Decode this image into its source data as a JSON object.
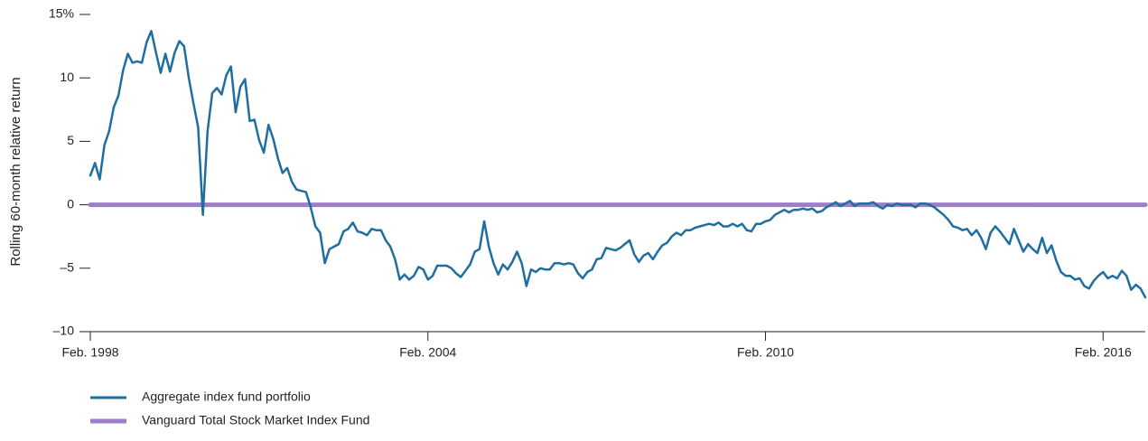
{
  "chart_data": {
    "type": "line",
    "ylabel": "Rolling 60-month relative return",
    "ylim": [
      -10,
      15
    ],
    "yticks": [
      {
        "value": -10,
        "label": "–10"
      },
      {
        "value": -5,
        "label": "–5"
      },
      0,
      5,
      10,
      {
        "value": 15,
        "label": "15%"
      }
    ],
    "xlim": [
      "1998-02",
      "2016-11"
    ],
    "xticks": [
      {
        "value": "1998-02",
        "label": "Feb. 1998"
      },
      {
        "value": "2004-02",
        "label": "Feb. 2004"
      },
      {
        "value": "2010-02",
        "label": "Feb. 2010"
      },
      {
        "value": "2016-02",
        "label": "Feb. 2016"
      }
    ],
    "x": [
      "1998-02",
      "1998-03",
      "1998-04",
      "1998-05",
      "1998-06",
      "1998-07",
      "1998-08",
      "1998-09",
      "1998-10",
      "1998-11",
      "1998-12",
      "1999-01",
      "1999-02",
      "1999-03",
      "1999-04",
      "1999-05",
      "1999-06",
      "1999-07",
      "1999-08",
      "1999-09",
      "1999-10",
      "1999-11",
      "1999-12",
      "2000-01",
      "2000-02",
      "2000-03",
      "2000-04",
      "2000-05",
      "2000-06",
      "2000-07",
      "2000-08",
      "2000-09",
      "2000-10",
      "2000-11",
      "2000-12",
      "2001-01",
      "2001-02",
      "2001-03",
      "2001-04",
      "2001-05",
      "2001-06",
      "2001-07",
      "2001-08",
      "2001-09",
      "2001-10",
      "2001-11",
      "2001-12",
      "2002-01",
      "2002-02",
      "2002-03",
      "2002-04",
      "2002-05",
      "2002-06",
      "2002-07",
      "2002-08",
      "2002-09",
      "2002-10",
      "2002-11",
      "2002-12",
      "2003-01",
      "2003-02",
      "2003-03",
      "2003-04",
      "2003-05",
      "2003-06",
      "2003-07",
      "2003-08",
      "2003-09",
      "2003-10",
      "2003-11",
      "2003-12",
      "2004-01",
      "2004-02",
      "2004-03",
      "2004-04",
      "2004-05",
      "2004-06",
      "2004-07",
      "2004-08",
      "2004-09",
      "2004-10",
      "2004-11",
      "2004-12",
      "2005-01",
      "2005-02",
      "2005-03",
      "2005-04",
      "2005-05",
      "2005-06",
      "2005-07",
      "2005-08",
      "2005-09",
      "2005-10",
      "2005-11",
      "2005-12",
      "2006-01",
      "2006-02",
      "2006-03",
      "2006-04",
      "2006-05",
      "2006-06",
      "2006-07",
      "2006-08",
      "2006-09",
      "2006-10",
      "2006-11",
      "2006-12",
      "2007-01",
      "2007-02",
      "2007-03",
      "2007-04",
      "2007-05",
      "2007-06",
      "2007-07",
      "2007-08",
      "2007-09",
      "2007-10",
      "2007-11",
      "2007-12",
      "2008-01",
      "2008-02",
      "2008-03",
      "2008-04",
      "2008-05",
      "2008-06",
      "2008-07",
      "2008-08",
      "2008-09",
      "2008-10",
      "2008-11",
      "2008-12",
      "2009-01",
      "2009-02",
      "2009-03",
      "2009-04",
      "2009-05",
      "2009-06",
      "2009-07",
      "2009-08",
      "2009-09",
      "2009-10",
      "2009-11",
      "2009-12",
      "2010-01",
      "2010-02",
      "2010-03",
      "2010-04",
      "2010-05",
      "2010-06",
      "2010-07",
      "2010-08",
      "2010-09",
      "2010-10",
      "2010-11",
      "2010-12",
      "2011-01",
      "2011-02",
      "2011-03",
      "2011-04",
      "2011-05",
      "2011-06",
      "2011-07",
      "2011-08",
      "2011-09",
      "2011-10",
      "2011-11",
      "2011-12",
      "2012-01",
      "2012-02",
      "2012-03",
      "2012-04",
      "2012-05",
      "2012-06",
      "2012-07",
      "2012-08",
      "2012-09",
      "2012-10",
      "2012-11",
      "2012-12",
      "2013-01",
      "2013-02",
      "2013-03",
      "2013-04",
      "2013-05",
      "2013-06",
      "2013-07",
      "2013-08",
      "2013-09",
      "2013-10",
      "2013-11",
      "2013-12",
      "2014-01",
      "2014-02",
      "2014-03",
      "2014-04",
      "2014-05",
      "2014-06",
      "2014-07",
      "2014-08",
      "2014-09",
      "2014-10",
      "2014-11",
      "2014-12",
      "2015-01",
      "2015-02",
      "2015-03",
      "2015-04",
      "2015-05",
      "2015-06",
      "2015-07",
      "2015-08",
      "2015-09",
      "2015-10",
      "2015-11",
      "2015-12",
      "2016-01",
      "2016-02",
      "2016-03",
      "2016-04",
      "2016-05",
      "2016-06",
      "2016-07",
      "2016-08",
      "2016-09",
      "2016-10",
      "2016-11"
    ],
    "series": [
      {
        "name": "Aggregate index fund portfolio",
        "color": "#1f6ea0",
        "values": [
          2.3,
          3.3,
          2.0,
          4.7,
          5.8,
          7.7,
          8.6,
          10.6,
          11.9,
          11.2,
          11.3,
          11.2,
          12.8,
          13.7,
          12.0,
          10.4,
          11.9,
          10.5,
          12.0,
          12.9,
          12.5,
          10.0,
          8.0,
          6.1,
          -0.8,
          5.8,
          8.8,
          9.2,
          8.7,
          10.2,
          10.9,
          7.3,
          9.3,
          9.9,
          6.6,
          6.7,
          5.1,
          4.1,
          6.3,
          5.2,
          3.7,
          2.5,
          2.9,
          1.8,
          1.2,
          1.1,
          1.0,
          -0.2,
          -1.7,
          -2.2,
          -4.6,
          -3.5,
          -3.3,
          -3.1,
          -2.1,
          -1.9,
          -1.4,
          -2.1,
          -2.2,
          -2.4,
          -1.9,
          -2.0,
          -2.0,
          -2.8,
          -3.3,
          -4.3,
          -5.9,
          -5.5,
          -5.9,
          -5.6,
          -4.9,
          -5.1,
          -5.9,
          -5.6,
          -4.8,
          -4.8,
          -4.8,
          -5.0,
          -5.4,
          -5.7,
          -5.2,
          -4.7,
          -3.7,
          -3.5,
          -1.3,
          -3.3,
          -4.6,
          -5.5,
          -4.7,
          -5.1,
          -4.5,
          -3.7,
          -4.6,
          -6.4,
          -5.1,
          -5.3,
          -5.0,
          -5.1,
          -5.1,
          -4.6,
          -4.6,
          -4.7,
          -4.6,
          -4.7,
          -5.4,
          -5.8,
          -5.3,
          -5.1,
          -4.3,
          -4.2,
          -3.4,
          -3.5,
          -3.6,
          -3.4,
          -3.1,
          -2.8,
          -3.9,
          -4.5,
          -4.0,
          -3.8,
          -4.3,
          -3.7,
          -3.2,
          -3.0,
          -2.5,
          -2.2,
          -2.4,
          -2.0,
          -2.0,
          -1.8,
          -1.7,
          -1.6,
          -1.5,
          -1.6,
          -1.4,
          -1.7,
          -1.7,
          -1.5,
          -1.7,
          -1.5,
          -2.0,
          -2.1,
          -1.5,
          -1.5,
          -1.3,
          -1.2,
          -0.8,
          -0.6,
          -0.4,
          -0.6,
          -0.4,
          -0.4,
          -0.3,
          -0.4,
          -0.3,
          -0.6,
          -0.5,
          -0.2,
          0.0,
          0.2,
          -0.1,
          0.1,
          0.3,
          -0.1,
          0.1,
          0.1,
          0.1,
          0.2,
          -0.1,
          -0.3,
          0.0,
          -0.1,
          0.1,
          0.0,
          0.0,
          0.0,
          -0.2,
          0.1,
          0.1,
          0.0,
          -0.2,
          -0.5,
          -0.8,
          -1.2,
          -1.7,
          -1.8,
          -2.0,
          -1.9,
          -2.4,
          -2.0,
          -2.6,
          -3.5,
          -2.2,
          -1.7,
          -2.1,
          -2.6,
          -3.1,
          -1.9,
          -2.8,
          -3.7,
          -3.1,
          -3.5,
          -3.8,
          -2.6,
          -3.8,
          -3.2,
          -4.4,
          -5.3,
          -5.6,
          -5.6,
          -5.9,
          -5.8,
          -6.4,
          -6.6,
          -6.0,
          -5.6,
          -5.3,
          -5.8,
          -5.6,
          -5.8,
          -5.2,
          -5.6,
          -6.7,
          -6.3,
          -6.6,
          -7.3
        ]
      },
      {
        "name": "Vanguard Total Stock Market Index Fund",
        "color": "#9d7fc7",
        "x": [
          "1998-02",
          "2016-11"
        ],
        "values": [
          0,
          0
        ]
      }
    ]
  }
}
